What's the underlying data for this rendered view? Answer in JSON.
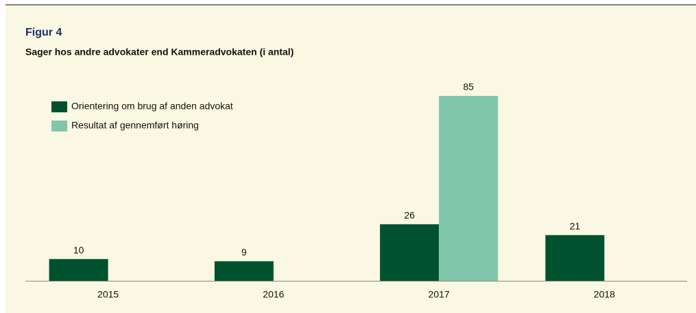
{
  "chart_data": {
    "type": "bar",
    "label": "Figur 4",
    "title": "Sager hos andre advokater end Kammeradvokaten (i antal)",
    "categories": [
      "2015",
      "2016",
      "2017",
      "2018"
    ],
    "series": [
      {
        "name": "Orientering om brug af anden advokat",
        "color": "#00522f",
        "values": [
          10,
          9,
          26,
          21
        ]
      },
      {
        "name": "Resultat af gennemført høring",
        "color": "#7fc6ab",
        "values": [
          null,
          null,
          85,
          null
        ]
      }
    ]
  }
}
